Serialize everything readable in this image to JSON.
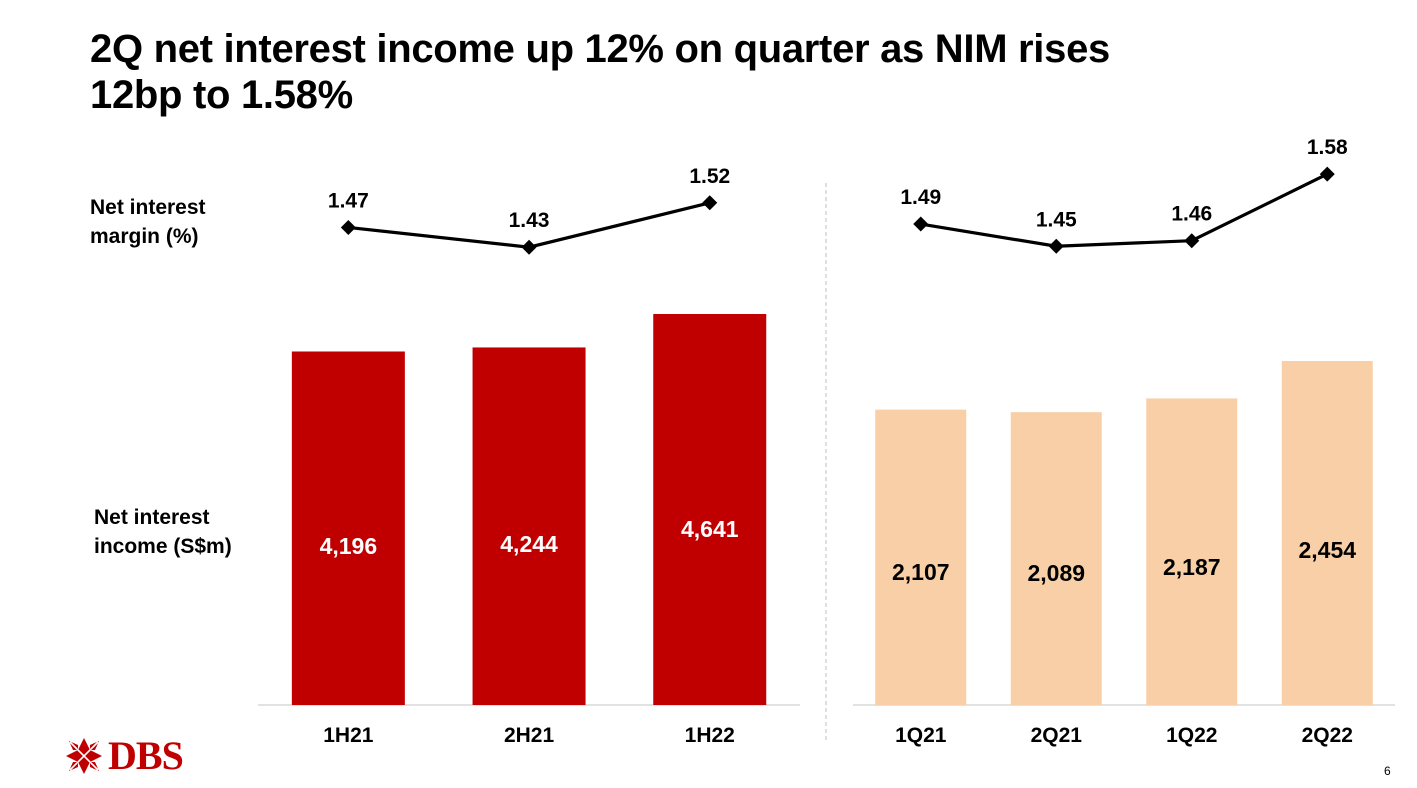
{
  "slide": {
    "title_line1": "2Q net interest income up 12% on quarter as NIM rises",
    "title_line2": "12bp to 1.58%",
    "nim_label_line1": "Net interest",
    "nim_label_line2": "margin (%)",
    "nii_label_line1": "Net interest",
    "nii_label_line2": "income (S$m)",
    "logo_text": "DBS",
    "page_number": "6"
  },
  "colors": {
    "half_year_bar": "#c00000",
    "quarter_bar": "#f8cfa6",
    "line": "#000000",
    "axis": "#d9d9d9",
    "divider": "#bfbfbf",
    "logo": "#c00000"
  },
  "chart_data": [
    {
      "type": "bar",
      "categories": [
        "1H21",
        "2H21",
        "1H22"
      ],
      "values": [
        4196,
        4244,
        4641
      ],
      "value_labels": [
        "4,196",
        "4,244",
        "4,641"
      ],
      "ylim": [
        0,
        5000
      ],
      "line_series": {
        "values": [
          1.47,
          1.43,
          1.52
        ],
        "labels": [
          "1.47",
          "1.43",
          "1.52"
        ]
      }
    },
    {
      "type": "bar",
      "categories": [
        "1Q21",
        "2Q21",
        "1Q22",
        "2Q22"
      ],
      "values": [
        2107,
        2089,
        2187,
        2454
      ],
      "value_labels": [
        "2,107",
        "2,089",
        "2,187",
        "2,454"
      ],
      "ylim": [
        0,
        3000
      ],
      "line_series": {
        "values": [
          1.49,
          1.45,
          1.46,
          1.58
        ],
        "labels": [
          "1.49",
          "1.45",
          "1.46",
          "1.58"
        ]
      }
    }
  ]
}
